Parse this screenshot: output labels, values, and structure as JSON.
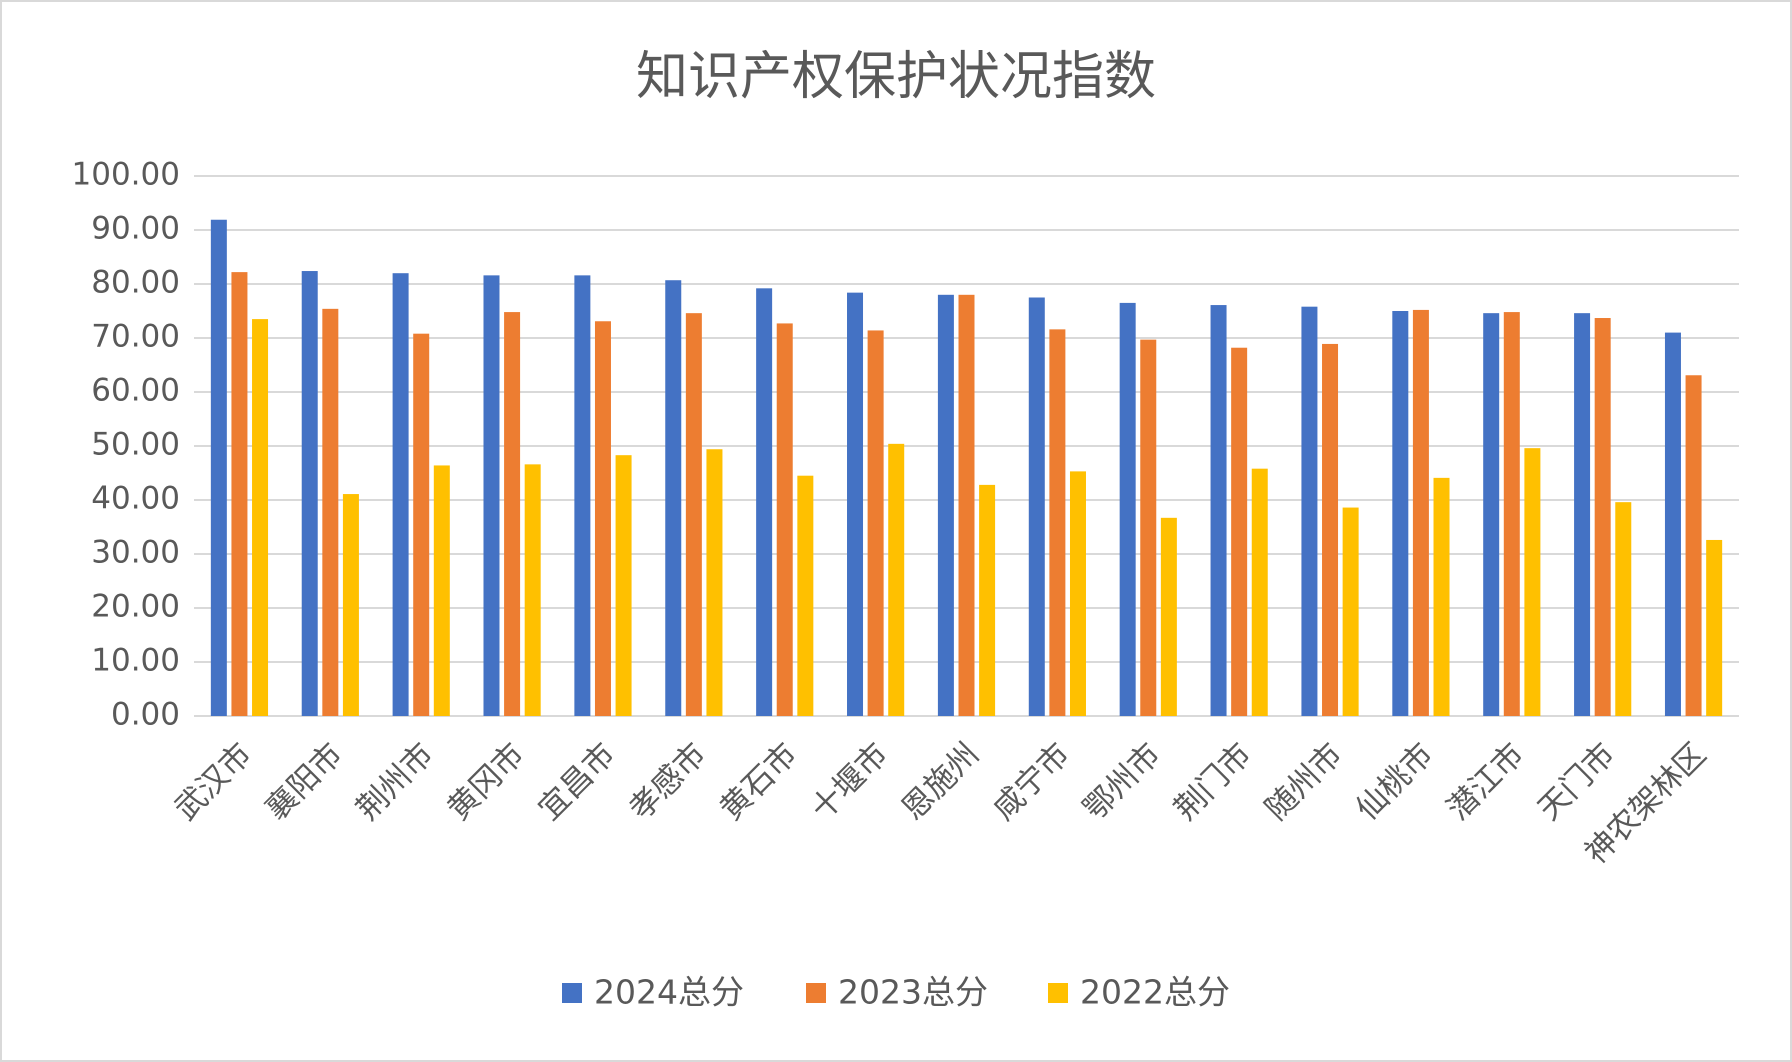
{
  "chart_data": {
    "type": "bar",
    "title": "知识产权保护状况指数",
    "categories": [
      "武汉市",
      "襄阳市",
      "荆州市",
      "黄冈市",
      "宜昌市",
      "孝感市",
      "黄石市",
      "十堰市",
      "恩施州",
      "咸宁市",
      "鄂州市",
      "荆门市",
      "随州市",
      "仙桃市",
      "潜江市",
      "天门市",
      "神农架林区"
    ],
    "series": [
      {
        "name": "2024总分",
        "color": "#4472c4",
        "values": [
          91.9,
          82.4,
          82.0,
          81.6,
          81.6,
          80.7,
          79.2,
          78.4,
          78.0,
          77.5,
          76.5,
          76.1,
          75.8,
          75.0,
          74.6,
          74.6,
          71.0
        ]
      },
      {
        "name": "2023总分",
        "color": "#ed7d31",
        "values": [
          82.2,
          75.4,
          70.8,
          74.8,
          73.1,
          74.6,
          72.7,
          71.4,
          78.0,
          71.6,
          69.7,
          68.2,
          68.9,
          75.2,
          74.8,
          73.7,
          63.1
        ]
      },
      {
        "name": "2022总分",
        "color": "#ffc000",
        "values": [
          73.5,
          41.1,
          46.4,
          46.6,
          48.3,
          49.4,
          44.5,
          50.4,
          42.8,
          45.3,
          36.7,
          45.8,
          38.6,
          44.1,
          49.6,
          39.6,
          32.6
        ]
      }
    ],
    "ylim": [
      0,
      100
    ],
    "yticks": [
      {
        "value": 0,
        "label": "0.00"
      },
      {
        "value": 10,
        "label": "10.00"
      },
      {
        "value": 20,
        "label": "20.00"
      },
      {
        "value": 30,
        "label": "30.00"
      },
      {
        "value": 40,
        "label": "40.00"
      },
      {
        "value": 50,
        "label": "50.00"
      },
      {
        "value": 60,
        "label": "60.00"
      },
      {
        "value": 70,
        "label": "70.00"
      },
      {
        "value": 80,
        "label": "80.00"
      },
      {
        "value": 90,
        "label": "90.00"
      },
      {
        "value": 100,
        "label": "100.00"
      }
    ],
    "grid": true,
    "legend": "bottom"
  }
}
